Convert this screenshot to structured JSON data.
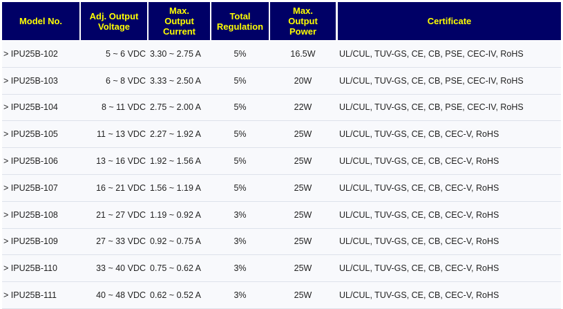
{
  "table": {
    "header": [
      "Model No.",
      "Adj. Output Voltage",
      "Max. Output Current",
      "Total Regulation",
      "Max. Output Power",
      "Certificate"
    ],
    "rows": [
      [
        "> IPU25B-102",
        "5 ~ 6 VDC",
        "3.30 ~ 2.75 A",
        "5%",
        "16.5W",
        "UL/CUL, TUV-GS, CE, CB, PSE, CEC-IV, RoHS"
      ],
      [
        "> IPU25B-103",
        "6 ~ 8 VDC",
        "3.33 ~ 2.50 A",
        "5%",
        "20W",
        "UL/CUL, TUV-GS, CE, CB, PSE, CEC-IV, RoHS"
      ],
      [
        "> IPU25B-104",
        "8 ~ 11 VDC",
        "2.75 ~ 2.00 A",
        "5%",
        "22W",
        "UL/CUL, TUV-GS, CE, CB, PSE, CEC-IV, RoHS"
      ],
      [
        "> IPU25B-105",
        "11 ~ 13 VDC",
        "2.27 ~ 1.92 A",
        "5%",
        "25W",
        "UL/CUL, TUV-GS, CE, CB, CEC-V, RoHS"
      ],
      [
        "> IPU25B-106",
        "13 ~ 16 VDC",
        "1.92 ~ 1.56 A",
        "5%",
        "25W",
        "UL/CUL, TUV-GS, CE, CB, CEC-V, RoHS"
      ],
      [
        "> IPU25B-107",
        "16 ~ 21 VDC",
        "1.56 ~ 1.19 A",
        "5%",
        "25W",
        "UL/CUL, TUV-GS, CE, CB, CEC-V, RoHS"
      ],
      [
        "> IPU25B-108",
        "21 ~ 27 VDC",
        "1.19 ~ 0.92 A",
        "3%",
        "25W",
        "UL/CUL, TUV-GS, CE, CB, CEC-V, RoHS"
      ],
      [
        "> IPU25B-109",
        "27 ~ 33 VDC",
        "0.92 ~ 0.75 A",
        "3%",
        "25W",
        "UL/CUL, TUV-GS, CE, CB, CEC-V, RoHS"
      ],
      [
        "> IPU25B-110",
        "33 ~ 40 VDC",
        "0.75 ~ 0.62 A",
        "3%",
        "25W",
        "UL/CUL, TUV-GS, CE, CB, CEC-V, RoHS"
      ],
      [
        "> IPU25B-111",
        "40 ~ 48 VDC",
        "0.62 ~ 0.52 A",
        "3%",
        "25W",
        "UL/CUL, TUV-GS, CE, CB, CEC-V, RoHS"
      ]
    ]
  }
}
